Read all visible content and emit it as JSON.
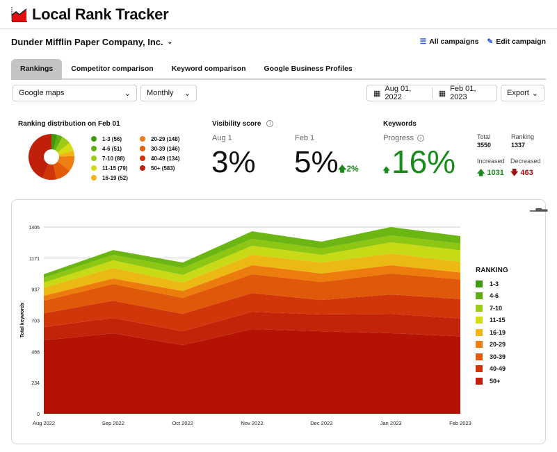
{
  "app": {
    "title": "Local Rank Tracker"
  },
  "campaign": {
    "name": "Dunder Mifflin Paper Company, Inc.",
    "all_campaigns": "All campaigns",
    "edit_campaign": "Edit campaign"
  },
  "tabs": [
    {
      "label": "Rankings"
    },
    {
      "label": "Competitor comparison"
    },
    {
      "label": "Keyword comparison"
    },
    {
      "label": "Google Business Profiles"
    }
  ],
  "filters": {
    "source": "Google maps",
    "period": "Monthly",
    "start_date": "Aug 01, 2022",
    "end_date": "Feb 01, 2023",
    "export": "Export"
  },
  "distribution": {
    "title": "Ranking distribution on Feb 01",
    "items": [
      {
        "label": "1-3 (56)",
        "value": 56,
        "color": "#3f9a0a"
      },
      {
        "label": "4-6 (51)",
        "value": 51,
        "color": "#5fae12"
      },
      {
        "label": "7-10 (88)",
        "value": 88,
        "color": "#9ccc14"
      },
      {
        "label": "11-15 (79)",
        "value": 79,
        "color": "#d5dc14"
      },
      {
        "label": "16-19 (52)",
        "value": 52,
        "color": "#f4b414"
      },
      {
        "label": "20-29 (148)",
        "value": 148,
        "color": "#ee7d12"
      },
      {
        "label": "30-39 (146)",
        "value": 146,
        "color": "#e45c0a"
      },
      {
        "label": "40-49 (134)",
        "value": 134,
        "color": "#d0350a"
      },
      {
        "label": "50+ (583)",
        "value": 583,
        "color": "#c0200a"
      }
    ]
  },
  "visibility": {
    "title": "Visibility score",
    "start_label": "Aug 1",
    "start_value": "3%",
    "end_label": "Feb 1",
    "end_value": "5%",
    "change": "2%"
  },
  "keywords": {
    "title": "Keywords",
    "progress_label": "Progress",
    "progress_value": "16%",
    "total_label": "Total",
    "total": "3550",
    "ranking_label": "Ranking",
    "ranking": "1337",
    "increased_label": "Increased",
    "increased": "1031",
    "decreased_label": "Decreased",
    "decreased": "463"
  },
  "chart_data": {
    "type": "area",
    "stacked": true,
    "ylabel": "Total keywords",
    "xlabel": "",
    "ylim": [
      0,
      1405
    ],
    "yticks": [
      "0",
      "234",
      "468",
      "703",
      "937",
      "1171",
      "1405"
    ],
    "categories": [
      "Aug 2022",
      "Sep 2022",
      "Oct 2022",
      "Nov 2022",
      "Dec 2022",
      "Jan 2023",
      "Feb 2023"
    ],
    "legend_title": "RANKING",
    "legend_position": "right",
    "series": [
      {
        "name": "50+",
        "color": "#b31204",
        "values": [
          553,
          606,
          517,
          637,
          621,
          606,
          583
        ]
      },
      {
        "name": "40-49",
        "color": "#c2240a",
        "values": [
          100,
          115,
          104,
          131,
          126,
          146,
          134
        ]
      },
      {
        "name": "30-39",
        "color": "#d1360a",
        "values": [
          104,
          130,
          131,
          140,
          109,
          146,
          146
        ]
      },
      {
        "name": "20-29",
        "color": "#e0580a",
        "values": [
          94,
          125,
          120,
          142,
          136,
          157,
          148
        ]
      },
      {
        "name": "16-19",
        "color": "#ec7c0c",
        "values": [
          37,
          42,
          52,
          68,
          63,
          63,
          52
        ]
      },
      {
        "name": "11-15",
        "color": "#ecb814",
        "values": [
          62,
          79,
          63,
          78,
          83,
          88,
          79
        ]
      },
      {
        "name": "7-10",
        "color": "#c8da16",
        "values": [
          37,
          57,
          57,
          68,
          58,
          84,
          88
        ]
      },
      {
        "name": "4-6",
        "color": "#8ec614",
        "values": [
          36,
          42,
          53,
          52,
          47,
          52,
          51
        ]
      },
      {
        "name": "1-3",
        "color": "#6cb614",
        "values": [
          27,
          36,
          41,
          57,
          52,
          63,
          56
        ]
      }
    ]
  }
}
